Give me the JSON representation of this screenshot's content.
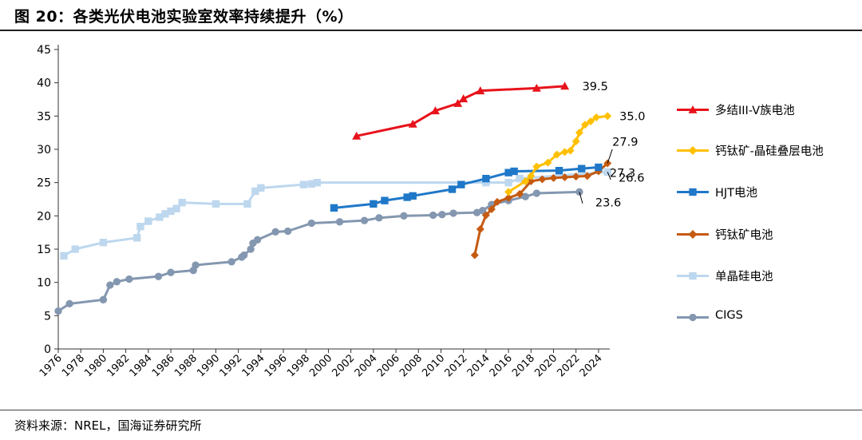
{
  "title": "图 20：各类光伏电池实验室效率持续提升（%）",
  "source": "资料来源：NREL，国海证券研究所",
  "chart_data": {
    "type": "line",
    "xlim": [
      1976,
      2025
    ],
    "ylim": [
      0,
      45
    ],
    "y_ticks": [
      0,
      5,
      10,
      15,
      20,
      25,
      30,
      35,
      40,
      45
    ],
    "x_ticks": [
      "1976",
      "1978",
      "1980",
      "1982",
      "1984",
      "1986",
      "1988",
      "1990",
      "1992",
      "1994",
      "1996",
      "1998",
      "2000",
      "2002",
      "2004",
      "2006",
      "2008",
      "2010",
      "2012",
      "2014",
      "2016",
      "2018",
      "2020",
      "2022",
      "2024"
    ],
    "grid": false,
    "legend_position": "right",
    "series": [
      {
        "name": "多结III-V族电池",
        "color": "#e8121b",
        "marker": "triangle",
        "x": [
          2002.5,
          2007.5,
          2009.5,
          2011.5,
          2012,
          2013.5,
          2018.5,
          2021
        ],
        "y": [
          32.0,
          33.8,
          35.8,
          36.9,
          37.6,
          38.8,
          39.2,
          39.5
        ],
        "end_label": "39.5"
      },
      {
        "name": "钙钛矿-晶硅叠层电池",
        "color": "#ffc000",
        "marker": "diamond",
        "x": [
          2016,
          2017.5,
          2018,
          2018.5,
          2019.5,
          2020.3,
          2021,
          2021.5,
          2022,
          2022.3,
          2022.8,
          2023.3,
          2023.8,
          2024.8
        ],
        "y": [
          23.6,
          25.2,
          26.0,
          27.4,
          28.0,
          29.2,
          29.6,
          29.8,
          31.2,
          32.5,
          33.7,
          34.2,
          34.8,
          35.0
        ],
        "end_label": "35.0"
      },
      {
        "name": "HJT电池",
        "color": "#1f78c8",
        "marker": "square",
        "x": [
          2000.5,
          2004,
          2005,
          2007,
          2007.5,
          2011,
          2011.8,
          2014,
          2016,
          2016.5,
          2020.5,
          2022.5,
          2024
        ],
        "y": [
          21.2,
          21.8,
          22.3,
          22.8,
          23.0,
          24.0,
          24.7,
          25.6,
          26.5,
          26.7,
          26.8,
          27.1,
          27.3
        ],
        "end_label": "27.3"
      },
      {
        "name": "钙钛矿电池",
        "color": "#c55a11",
        "marker": "diamond",
        "x": [
          2013,
          2013.5,
          2014,
          2014.5,
          2015,
          2016,
          2017,
          2018,
          2019,
          2020,
          2021,
          2022,
          2023,
          2024,
          2024.8
        ],
        "y": [
          14.1,
          18.0,
          20.1,
          21.0,
          22.1,
          22.7,
          23.3,
          25.2,
          25.5,
          25.7,
          25.8,
          25.9,
          26.0,
          26.7,
          27.9
        ],
        "end_label": "27.9"
      },
      {
        "name": "单晶硅电池",
        "color": "#bdd7ee",
        "marker": "square",
        "x": [
          1976.5,
          1977.5,
          1980,
          1983,
          1983.3,
          1984,
          1985,
          1985.5,
          1986,
          1986.5,
          1987,
          1990,
          1992.8,
          1993.5,
          1994,
          1997.8,
          1998.5,
          1999,
          2014,
          2016,
          2017,
          2024.8
        ],
        "y": [
          14.0,
          15.0,
          16.0,
          16.7,
          18.4,
          19.2,
          19.8,
          20.3,
          20.7,
          21.1,
          22.0,
          21.8,
          21.8,
          23.7,
          24.2,
          24.7,
          24.8,
          25.0,
          25.0,
          25.0,
          25.6,
          26.6
        ],
        "end_label": "26.6"
      },
      {
        "name": "CIGS",
        "color": "#8497b0",
        "marker": "circle",
        "x": [
          1976,
          1977,
          1980,
          1980.6,
          1981.2,
          1982.3,
          1984.9,
          1986,
          1988,
          1988.2,
          1991.4,
          1992.3,
          1992.5,
          1993.1,
          1993.3,
          1993.7,
          1995.3,
          1996.4,
          1998.5,
          2001,
          2003.2,
          2004.5,
          2006.7,
          2009.3,
          2010.1,
          2011.1,
          2013.2,
          2013.7,
          2014.5,
          2016,
          2017.5,
          2018.5,
          2022.3
        ],
        "y": [
          5.7,
          6.8,
          7.4,
          9.6,
          10.1,
          10.5,
          10.9,
          11.5,
          11.8,
          12.6,
          13.1,
          13.8,
          14.1,
          15.0,
          15.9,
          16.4,
          17.6,
          17.7,
          18.9,
          19.1,
          19.3,
          19.7,
          20.0,
          20.1,
          20.2,
          20.4,
          20.5,
          20.8,
          21.7,
          22.3,
          22.9,
          23.4,
          23.6
        ],
        "end_label": "23.6"
      }
    ]
  }
}
